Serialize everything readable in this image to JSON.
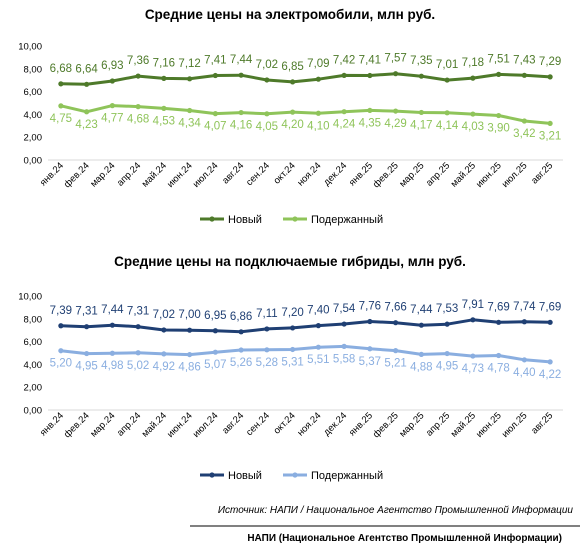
{
  "chart_data": [
    {
      "type": "line",
      "title": "Средние цены на электромобили, млн руб.",
      "categories": [
        "янв.24",
        "фев.24",
        "мар.24",
        "апр.24",
        "май.24",
        "июн.24",
        "июл.24",
        "авг.24",
        "сен.24",
        "окт.24",
        "ноя.24",
        "дек.24",
        "янв.25",
        "фев.25",
        "мар.25",
        "апр.25",
        "май.25",
        "июн.25",
        "июл.25",
        "авг.25"
      ],
      "series": [
        {
          "name": "Новый",
          "color": "#4e7a2a",
          "values": [
            6.68,
            6.64,
            6.93,
            7.36,
            7.16,
            7.12,
            7.41,
            7.44,
            7.02,
            6.85,
            7.09,
            7.42,
            7.41,
            7.57,
            7.35,
            7.01,
            7.18,
            7.51,
            7.43,
            7.29
          ],
          "labels": [
            "6,68",
            "6,64",
            "6,93",
            "7,36",
            "7,16",
            "7,12",
            "7,41",
            "7,44",
            "7,02",
            "6,85",
            "7,09",
            "7,42",
            "7,41",
            "7,57",
            "7,35",
            "7,01",
            "7,18",
            "7,51",
            "7,43",
            "7,29"
          ]
        },
        {
          "name": "Подержанный",
          "color": "#8fc45a",
          "values": [
            4.75,
            4.23,
            4.77,
            4.68,
            4.53,
            4.34,
            4.07,
            4.16,
            4.05,
            4.2,
            4.1,
            4.24,
            4.35,
            4.29,
            4.17,
            4.14,
            4.03,
            3.9,
            3.42,
            3.21
          ],
          "labels": [
            "4,75",
            "4,23",
            "4,77",
            "4,68",
            "4,53",
            "4,34",
            "4,07",
            "4,16",
            "4,05",
            "4,20",
            "4,10",
            "4,24",
            "4,35",
            "4,29",
            "4,17",
            "4,14",
            "4,03",
            "3,90",
            "3,42",
            "3,21"
          ]
        }
      ],
      "yticks": [
        "0,00",
        "2,00",
        "4,00",
        "6,00",
        "8,00",
        "10,00"
      ],
      "ylim": [
        0,
        10
      ],
      "grid": false,
      "legend": "bottom"
    },
    {
      "type": "line",
      "title": "Средние цены на подключаемые гибриды, млн руб.",
      "categories": [
        "янв.24",
        "фев.24",
        "мар.24",
        "апр.24",
        "май.24",
        "июн.24",
        "июл.24",
        "авг.24",
        "сен.24",
        "окт.24",
        "ноя.24",
        "дек.24",
        "янв.25",
        "фев.25",
        "мар.25",
        "апр.25",
        "май.25",
        "июн.25",
        "июл.25",
        "авг.25"
      ],
      "series": [
        {
          "name": "Новый",
          "color": "#1f3f73",
          "values": [
            7.39,
            7.31,
            7.44,
            7.31,
            7.02,
            7.0,
            6.95,
            6.86,
            7.11,
            7.2,
            7.4,
            7.54,
            7.76,
            7.66,
            7.44,
            7.53,
            7.91,
            7.69,
            7.74,
            7.69
          ],
          "labels": [
            "7,39",
            "7,31",
            "7,44",
            "7,31",
            "7,02",
            "7,00",
            "6,95",
            "6,86",
            "7,11",
            "7,20",
            "7,40",
            "7,54",
            "7,76",
            "7,66",
            "7,44",
            "7,53",
            "7,91",
            "7,69",
            "7,74",
            "7,69"
          ]
        },
        {
          "name": "Подержанный",
          "color": "#8aaee0",
          "values": [
            5.2,
            4.95,
            4.98,
            5.02,
            4.92,
            4.86,
            5.07,
            5.26,
            5.28,
            5.31,
            5.51,
            5.58,
            5.37,
            5.21,
            4.88,
            4.95,
            4.73,
            4.78,
            4.4,
            4.22
          ],
          "labels": [
            "5,20",
            "4,95",
            "4,98",
            "5,02",
            "4,92",
            "4,86",
            "5,07",
            "5,26",
            "5,28",
            "5,31",
            "5,51",
            "5,58",
            "5,37",
            "5,21",
            "4,88",
            "4,95",
            "4,73",
            "4,78",
            "4,40",
            "4,22"
          ]
        }
      ],
      "yticks": [
        "0,00",
        "2,00",
        "4,00",
        "6,00",
        "8,00",
        "10,00"
      ],
      "ylim": [
        0,
        10
      ],
      "grid": false,
      "legend": "bottom"
    }
  ],
  "source": "Источник: НАПИ / Национальное Агентство Промышленной Информации",
  "footer": "НАПИ (Национальное Агентство Промышленной Информации)"
}
